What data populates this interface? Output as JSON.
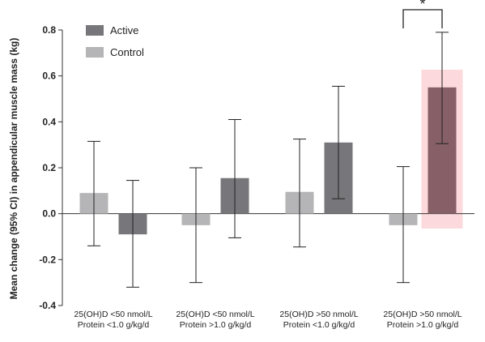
{
  "chart_data": {
    "type": "bar",
    "ylabel": "Mean change (95% CI) in appendicular muscle mass (kg)",
    "ylim": [
      -0.4,
      0.8
    ],
    "yticks": [
      "0.8",
      "0.6",
      "0.4",
      "0.2",
      "0.0",
      "-0.2",
      "-0.4"
    ],
    "ytick_values": [
      0.8,
      0.6,
      0.4,
      0.2,
      0.0,
      -0.2,
      -0.4
    ],
    "categories": [
      {
        "line1": "25(OH)D <50 nmol/L",
        "line2": "Protein <1.0 g/kg/d"
      },
      {
        "line1": "25(OH)D <50 nmol/L",
        "line2": "Protein >1.0 g/kg/d"
      },
      {
        "line1": "25(OH)D >50 nmol/L",
        "line2": "Protein <1.0 g/kg/d"
      },
      {
        "line1": "25(OH)D >50 nmol/L",
        "line2": "Protein >1.0 g/kg/d"
      }
    ],
    "series": [
      {
        "name": "Control",
        "color": "#b5b5b7",
        "values": [
          0.09,
          -0.05,
          0.095,
          -0.05
        ],
        "ci_low": [
          -0.14,
          -0.3,
          -0.145,
          -0.3
        ],
        "ci_high": [
          0.315,
          0.2,
          0.325,
          0.205
        ]
      },
      {
        "name": "Active",
        "color": "#77777b",
        "highlight_color": "#866066",
        "values": [
          -0.09,
          0.155,
          0.31,
          0.55
        ],
        "ci_low": [
          -0.32,
          -0.105,
          0.065,
          0.305
        ],
        "ci_high": [
          0.145,
          0.41,
          0.555,
          0.79
        ]
      }
    ],
    "legend": {
      "placement": "top-left",
      "entries": [
        "Active",
        "Control"
      ]
    },
    "highlight": {
      "category_index": 3,
      "color": "#fcd9dc"
    },
    "significance": {
      "category_index": 3,
      "label": "*"
    },
    "grid": false
  }
}
